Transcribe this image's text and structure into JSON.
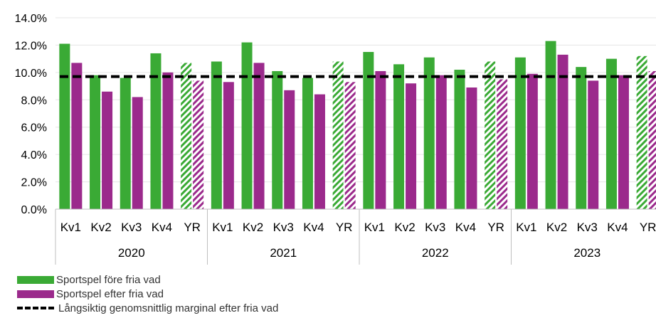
{
  "chart_data": {
    "type": "bar",
    "categories": [
      "Kv1",
      "Kv2",
      "Kv3",
      "Kv4",
      "YR",
      "Kv1",
      "Kv2",
      "Kv3",
      "Kv4",
      "YR",
      "Kv1",
      "Kv2",
      "Kv3",
      "Kv4",
      "YR",
      "Kv1",
      "Kv2",
      "Kv3",
      "Kv4",
      "YR"
    ],
    "groups": [
      "2020",
      "2021",
      "2022",
      "2023"
    ],
    "hatched_category": "YR",
    "series": [
      {
        "name": "Sportspel före fria vad",
        "color": "#3aaa35",
        "values": [
          12.1,
          9.8,
          9.6,
          11.4,
          10.7,
          10.8,
          12.2,
          10.1,
          9.6,
          10.8,
          11.5,
          10.6,
          11.1,
          10.2,
          10.8,
          11.1,
          12.3,
          10.4,
          11.0,
          11.2
        ]
      },
      {
        "name": "Sportspel efter fria vad",
        "color": "#9b2a8c",
        "values": [
          10.7,
          8.6,
          8.2,
          10.0,
          9.4,
          9.3,
          10.7,
          8.7,
          8.4,
          9.3,
          10.1,
          9.2,
          9.8,
          8.9,
          9.5,
          9.9,
          11.3,
          9.4,
          9.8,
          10.1
        ]
      }
    ],
    "reference_line": {
      "name": "Långsiktig genomsnittlig marginal efter fria vad",
      "value": 9.7,
      "style": "dashed",
      "color": "#000000"
    },
    "ylim": [
      0,
      14
    ],
    "yticks": [
      "0.0%",
      "2.0%",
      "4.0%",
      "6.0%",
      "8.0%",
      "10.0%",
      "12.0%",
      "14.0%"
    ],
    "grid": true,
    "legend_position": "bottom-left"
  }
}
